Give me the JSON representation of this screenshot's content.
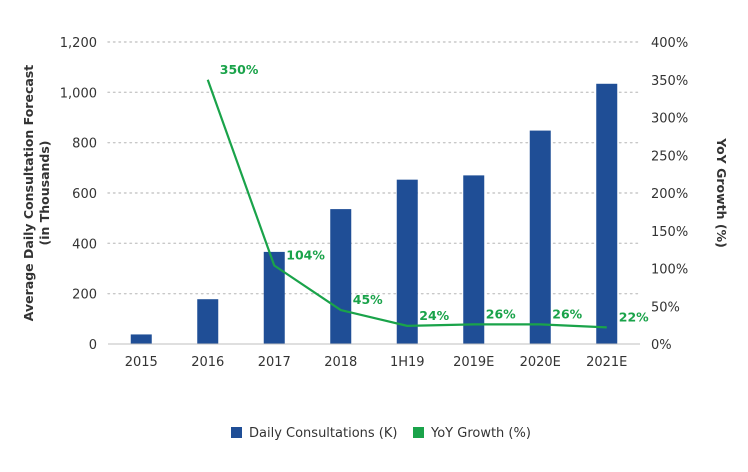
{
  "chart_data": {
    "type": "bar",
    "categories": [
      "2015",
      "2016",
      "2017",
      "2018",
      "1H19",
      "2019E",
      "2020E",
      "2021E"
    ],
    "series": [
      {
        "name": "Daily Consultations (K)",
        "type": "bar",
        "axis": "left",
        "color": "#1f4e96",
        "values": [
          38,
          178,
          366,
          536,
          653,
          670,
          848,
          1034
        ]
      },
      {
        "name": "YoY Growth (%)",
        "type": "line",
        "axis": "right",
        "color": "#1aa34a",
        "values": [
          null,
          350,
          104,
          45,
          24,
          26,
          26,
          22
        ],
        "labels": [
          "",
          "350%",
          "104%",
          "45%",
          "24%",
          "26%",
          "26%",
          "22%"
        ]
      }
    ],
    "ylabel_left": [
      "Average Daily Consultation Forecast",
      "(in Thousands)"
    ],
    "ylabel_right": "YoY Growth (%)",
    "ylim_left": [
      0,
      1200
    ],
    "ylim_right": [
      0,
      400
    ],
    "yticks_left": [
      "0",
      "200",
      "400",
      "600",
      "800",
      "1,000",
      "1,200"
    ],
    "yticks_right": [
      "0%",
      "50%",
      "100%",
      "150%",
      "200%",
      "250%",
      "300%",
      "350%",
      "400%"
    ],
    "grid": true,
    "legend_position": "bottom-center"
  }
}
